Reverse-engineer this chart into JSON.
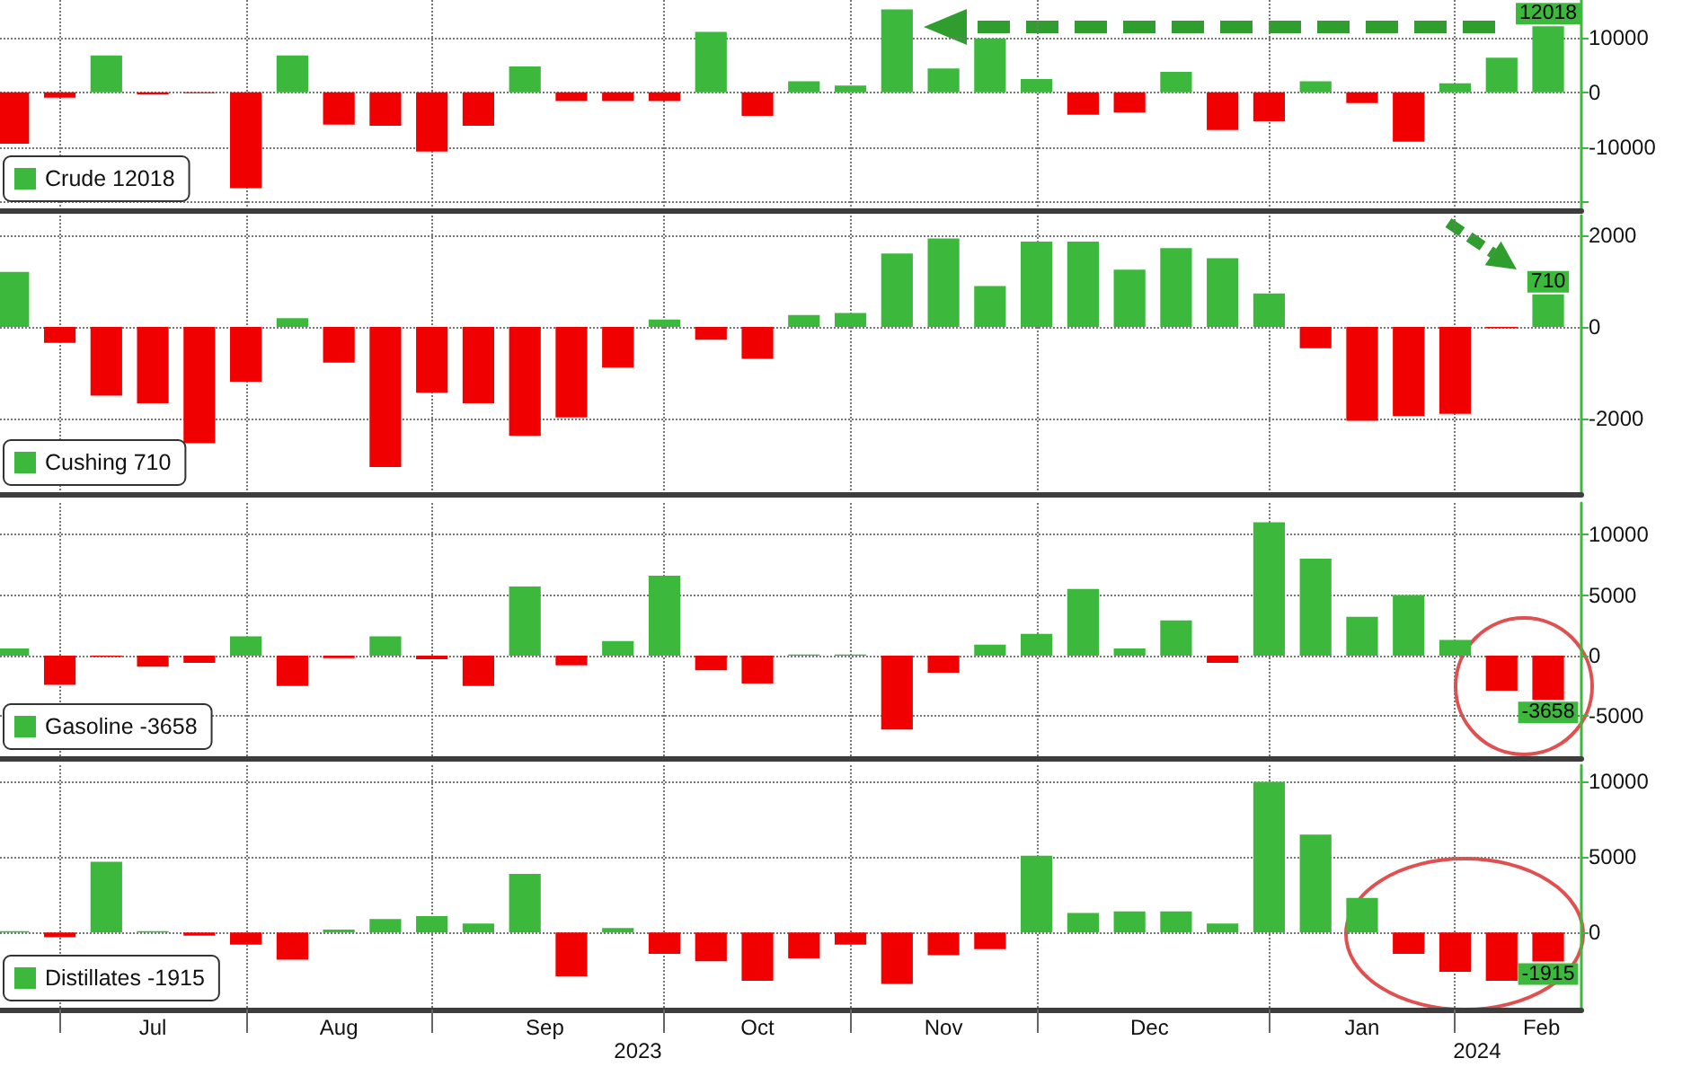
{
  "chart_data": [
    {
      "type": "bar",
      "x": [
        "2023-06-23",
        "2023-06-30",
        "2023-07-07",
        "2023-07-14",
        "2023-07-21",
        "2023-07-28",
        "2023-08-04",
        "2023-08-11",
        "2023-08-18",
        "2023-08-25",
        "2023-09-01",
        "2023-09-08",
        "2023-09-15",
        "2023-09-22",
        "2023-09-29",
        "2023-10-06",
        "2023-10-13",
        "2023-10-20",
        "2023-10-27",
        "2023-11-03",
        "2023-11-10",
        "2023-11-17",
        "2023-11-24",
        "2023-12-01",
        "2023-12-08",
        "2023-12-15",
        "2023-12-22",
        "2023-12-29",
        "2024-01-05",
        "2024-01-12",
        "2024-01-19",
        "2024-01-26",
        "2024-02-02",
        "2024-02-09"
      ],
      "series": [
        {
          "name": "Crude 12018",
          "color": "#3cb83c",
          "values": [
            -9400,
            -1000,
            6700,
            -400,
            -200,
            -17500,
            6700,
            -5900,
            -6100,
            -10800,
            -6100,
            4700,
            -1600,
            -1600,
            -1600,
            11000,
            -4300,
            2000,
            1200,
            15100,
            4300,
            9800,
            2400,
            -4100,
            -3700,
            3700,
            -6900,
            -5300,
            2000,
            -2000,
            -9000,
            1600,
            6300,
            12018
          ],
          "colors": [
            "#f00000",
            "#f00000",
            "#3cb83c",
            "#f00000",
            "#f00000",
            "#f00000",
            "#3cb83c",
            "#f00000",
            "#f00000",
            "#f00000",
            "#f00000",
            "#3cb83c",
            "#f00000",
            "#f00000",
            "#f00000",
            "#3cb83c",
            "#f00000",
            "#3cb83c",
            "#3cb83c",
            "#3cb83c",
            "#3cb83c",
            "#3cb83c",
            "#3cb83c",
            "#f00000",
            "#f00000",
            "#3cb83c",
            "#f00000",
            "#f00000",
            "#3cb83c",
            "#f00000",
            "#f00000",
            "#3cb83c",
            "#3cb83c",
            "#3cb83c"
          ],
          "value_labels": [
            null,
            null,
            null,
            null,
            null,
            null,
            null,
            null,
            null,
            null,
            null,
            null,
            null,
            null,
            null,
            null,
            null,
            null,
            null,
            null,
            null,
            null,
            null,
            null,
            null,
            null,
            null,
            null,
            null,
            null,
            null,
            null,
            null,
            "12018"
          ]
        }
      ],
      "xlim": [
        "2023-06-21",
        "2024-02-14"
      ],
      "xticks": [
        {
          "value": "2023-06-30",
          "label": null
        },
        {
          "value": "2023-07-28",
          "label": null
        },
        {
          "value": "2023-08-25",
          "label": null
        },
        {
          "value": "2023-09-29",
          "label": null
        },
        {
          "value": "2023-10-27",
          "label": null
        },
        {
          "value": "2023-11-24",
          "label": null
        },
        {
          "value": "2023-12-29",
          "label": null
        },
        {
          "value": "2024-01-26",
          "label": null
        }
      ],
      "ylim": [
        -21500,
        16800
      ],
      "yticks": [
        {
          "value": -20000,
          "label": null
        },
        -10000,
        0,
        10000
      ],
      "grid": true,
      "legend": "bottom left",
      "tick_labels": "y"
    },
    {
      "type": "bar",
      "x": [
        "2023-06-23",
        "2023-06-30",
        "2023-07-07",
        "2023-07-14",
        "2023-07-21",
        "2023-07-28",
        "2023-08-04",
        "2023-08-11",
        "2023-08-18",
        "2023-08-25",
        "2023-09-01",
        "2023-09-08",
        "2023-09-15",
        "2023-09-22",
        "2023-09-29",
        "2023-10-06",
        "2023-10-13",
        "2023-10-20",
        "2023-10-27",
        "2023-11-03",
        "2023-11-10",
        "2023-11-17",
        "2023-11-24",
        "2023-12-01",
        "2023-12-08",
        "2023-12-15",
        "2023-12-22",
        "2023-12-29",
        "2024-01-05",
        "2024-01-12",
        "2024-01-19",
        "2024-01-26",
        "2024-02-02",
        "2024-02-09"
      ],
      "series": [
        {
          "name": "Cushing 710",
          "color": "#3cb83c",
          "values": [
            1200,
            -350,
            -1500,
            -1670,
            -2540,
            -1200,
            190,
            -780,
            -3060,
            -1440,
            -1670,
            -2380,
            -1980,
            -890,
            160,
            -280,
            -700,
            260,
            300,
            1600,
            1930,
            890,
            1860,
            1860,
            1250,
            1720,
            1500,
            730,
            -470,
            -2050,
            -1950,
            -1900,
            -30,
            710
          ],
          "colors": [
            "#3cb83c",
            "#f00000",
            "#f00000",
            "#f00000",
            "#f00000",
            "#f00000",
            "#3cb83c",
            "#f00000",
            "#f00000",
            "#f00000",
            "#f00000",
            "#f00000",
            "#f00000",
            "#f00000",
            "#3cb83c",
            "#f00000",
            "#f00000",
            "#3cb83c",
            "#3cb83c",
            "#3cb83c",
            "#3cb83c",
            "#3cb83c",
            "#3cb83c",
            "#3cb83c",
            "#3cb83c",
            "#3cb83c",
            "#3cb83c",
            "#3cb83c",
            "#f00000",
            "#f00000",
            "#f00000",
            "#f00000",
            "#f00000",
            "#3cb83c"
          ],
          "value_labels": [
            null,
            null,
            null,
            null,
            null,
            null,
            null,
            null,
            null,
            null,
            null,
            null,
            null,
            null,
            null,
            null,
            null,
            null,
            null,
            null,
            null,
            null,
            null,
            null,
            null,
            null,
            null,
            null,
            null,
            null,
            null,
            null,
            null,
            "710"
          ]
        }
      ],
      "xlim": [
        "2023-06-21",
        "2024-02-14"
      ],
      "xticks": [
        {
          "value": "2023-06-30",
          "label": null
        },
        {
          "value": "2023-07-28",
          "label": null
        },
        {
          "value": "2023-08-25",
          "label": null
        },
        {
          "value": "2023-09-29",
          "label": null
        },
        {
          "value": "2023-10-27",
          "label": null
        },
        {
          "value": "2023-11-24",
          "label": null
        },
        {
          "value": "2023-12-29",
          "label": null
        },
        {
          "value": "2024-01-26",
          "label": null
        }
      ],
      "ylim": [
        -3650,
        2430
      ],
      "yticks": [
        -2000,
        0,
        2000
      ],
      "grid": true,
      "legend": "bottom left",
      "tick_labels": "y"
    },
    {
      "type": "bar",
      "x": [
        "2023-06-23",
        "2023-06-30",
        "2023-07-07",
        "2023-07-14",
        "2023-07-21",
        "2023-07-28",
        "2023-08-04",
        "2023-08-11",
        "2023-08-18",
        "2023-08-25",
        "2023-09-01",
        "2023-09-08",
        "2023-09-15",
        "2023-09-22",
        "2023-09-29",
        "2023-10-06",
        "2023-10-13",
        "2023-10-20",
        "2023-10-27",
        "2023-11-03",
        "2023-11-10",
        "2023-11-17",
        "2023-11-24",
        "2023-12-01",
        "2023-12-08",
        "2023-12-15",
        "2023-12-22",
        "2023-12-29",
        "2024-01-05",
        "2024-01-12",
        "2024-01-19",
        "2024-01-26",
        "2024-02-02",
        "2024-02-09"
      ],
      "series": [
        {
          "name": "Gasoline -3658",
          "color": "#3cb83c",
          "values": [
            600,
            -2400,
            -100,
            -900,
            -600,
            1600,
            -2500,
            -200,
            1600,
            -300,
            -2500,
            5700,
            -800,
            1200,
            6600,
            -1200,
            -2300,
            100,
            100,
            -6100,
            -1400,
            900,
            1800,
            5500,
            600,
            2900,
            -600,
            11000,
            8000,
            3200,
            5000,
            1300,
            -2900,
            -3658
          ],
          "colors": [
            "#3cb83c",
            "#f00000",
            "#f00000",
            "#f00000",
            "#f00000",
            "#3cb83c",
            "#f00000",
            "#f00000",
            "#3cb83c",
            "#f00000",
            "#f00000",
            "#3cb83c",
            "#f00000",
            "#3cb83c",
            "#3cb83c",
            "#f00000",
            "#f00000",
            "#3cb83c",
            "#3cb83c",
            "#f00000",
            "#f00000",
            "#3cb83c",
            "#3cb83c",
            "#3cb83c",
            "#3cb83c",
            "#3cb83c",
            "#f00000",
            "#3cb83c",
            "#3cb83c",
            "#3cb83c",
            "#3cb83c",
            "#3cb83c",
            "#f00000",
            "#f00000"
          ],
          "value_labels": [
            null,
            null,
            null,
            null,
            null,
            null,
            null,
            null,
            null,
            null,
            null,
            null,
            null,
            null,
            null,
            null,
            null,
            null,
            null,
            null,
            null,
            null,
            null,
            null,
            null,
            null,
            null,
            null,
            null,
            null,
            null,
            null,
            null,
            "-3658"
          ]
        }
      ],
      "xlim": [
        "2023-06-21",
        "2024-02-14"
      ],
      "xticks": [
        {
          "value": "2023-06-30",
          "label": null
        },
        {
          "value": "2023-07-28",
          "label": null
        },
        {
          "value": "2023-08-25",
          "label": null
        },
        {
          "value": "2023-09-29",
          "label": null
        },
        {
          "value": "2023-10-27",
          "label": null
        },
        {
          "value": "2023-11-24",
          "label": null
        },
        {
          "value": "2023-12-29",
          "label": null
        },
        {
          "value": "2024-01-26",
          "label": null
        }
      ],
      "ylim": [
        -8450,
        12600
      ],
      "yticks": [
        -5000,
        0,
        5000,
        10000
      ],
      "grid": true,
      "legend": "bottom left",
      "tick_labels": "y"
    },
    {
      "type": "bar",
      "x": [
        "2023-06-23",
        "2023-06-30",
        "2023-07-07",
        "2023-07-14",
        "2023-07-21",
        "2023-07-28",
        "2023-08-04",
        "2023-08-11",
        "2023-08-18",
        "2023-08-25",
        "2023-09-01",
        "2023-09-08",
        "2023-09-15",
        "2023-09-22",
        "2023-09-29",
        "2023-10-06",
        "2023-10-13",
        "2023-10-20",
        "2023-10-27",
        "2023-11-03",
        "2023-11-10",
        "2023-11-17",
        "2023-11-24",
        "2023-12-01",
        "2023-12-08",
        "2023-12-15",
        "2023-12-22",
        "2023-12-29",
        "2024-01-05",
        "2024-01-12",
        "2024-01-19",
        "2024-01-26",
        "2024-02-02",
        "2024-02-09"
      ],
      "series": [
        {
          "name": "Distillates -1915",
          "color": "#3cb83c",
          "values": [
            100,
            -300,
            4700,
            100,
            -200,
            -800,
            -1800,
            200,
            900,
            1100,
            600,
            3900,
            -2900,
            300,
            -1400,
            -1900,
            -3200,
            -1700,
            -800,
            -3400,
            -1500,
            -1100,
            5100,
            1300,
            1400,
            1400,
            600,
            10000,
            6500,
            2300,
            -1400,
            -2600,
            -3200,
            -1915
          ],
          "colors": [
            "#3cb83c",
            "#f00000",
            "#3cb83c",
            "#3cb83c",
            "#f00000",
            "#f00000",
            "#f00000",
            "#3cb83c",
            "#3cb83c",
            "#3cb83c",
            "#3cb83c",
            "#3cb83c",
            "#f00000",
            "#3cb83c",
            "#f00000",
            "#f00000",
            "#f00000",
            "#f00000",
            "#f00000",
            "#f00000",
            "#f00000",
            "#f00000",
            "#3cb83c",
            "#3cb83c",
            "#3cb83c",
            "#3cb83c",
            "#3cb83c",
            "#3cb83c",
            "#3cb83c",
            "#3cb83c",
            "#f00000",
            "#f00000",
            "#f00000",
            "#f00000"
          ],
          "value_labels": [
            null,
            null,
            null,
            null,
            null,
            null,
            null,
            null,
            null,
            null,
            null,
            null,
            null,
            null,
            null,
            null,
            null,
            null,
            null,
            null,
            null,
            null,
            null,
            null,
            null,
            null,
            null,
            null,
            null,
            null,
            null,
            null,
            null,
            "-1915"
          ]
        }
      ],
      "xlim": [
        "2023-06-21",
        "2024-02-14"
      ],
      "xticks": [
        {
          "value": "2023-06-30",
          "label": null
        },
        {
          "value": "2023-07-14",
          "label": "Jul"
        },
        {
          "value": "2023-07-28",
          "label": null
        },
        {
          "value": "2023-08-11",
          "label": "Aug"
        },
        {
          "value": "2023-08-25",
          "label": null
        },
        {
          "value": "2023-09-11",
          "label": "Sep"
        },
        {
          "value": "2023-09-29",
          "label": null
        },
        {
          "value": "2023-10-13",
          "label": "Oct"
        },
        {
          "value": "2023-10-27",
          "label": null
        },
        {
          "value": "2023-11-10",
          "label": "Nov"
        },
        {
          "value": "2023-11-24",
          "label": null
        },
        {
          "value": "2023-12-11",
          "label": "Dec"
        },
        {
          "value": "2023-12-29",
          "label": null
        },
        {
          "value": "2024-01-12",
          "label": "Jan"
        },
        {
          "value": "2024-01-26",
          "label": null
        },
        {
          "value": "2024-02-08",
          "label": "Feb"
        }
      ],
      "ylim": [
        -5100,
        11100
      ],
      "yticks": [
        0,
        5000,
        10000
      ],
      "grid": true,
      "legend": "bottom left",
      "annotations": [
        "2023",
        "2024"
      ]
    }
  ]
}
